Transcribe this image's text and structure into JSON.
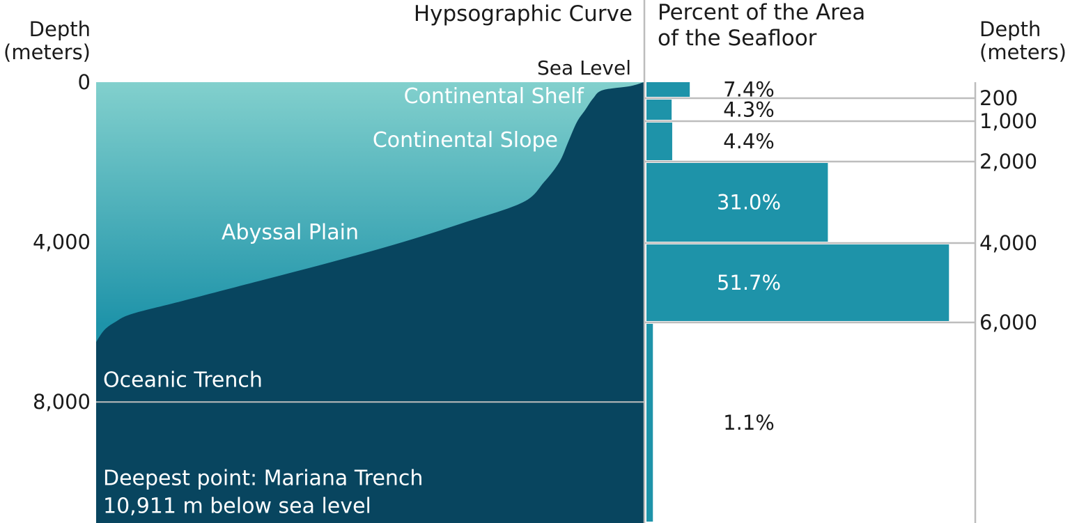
{
  "colors": {
    "ocean_top": "#82d0cd",
    "ocean_mid": "#1e93a9",
    "land": "#08455f",
    "bar": "#1e93a9",
    "grid": "#bdbdbd",
    "text_dark": "#1a1a1a",
    "text_light": "#ffffff"
  },
  "chart_data": [
    {
      "type": "area",
      "title": "Hypsographic Curve",
      "ylabel": "Depth\n(meters)",
      "y_ticks": [
        {
          "value": 0,
          "label": "0"
        },
        {
          "value": 4000,
          "label": "4,000"
        },
        {
          "value": 8000,
          "label": "8,000"
        }
      ],
      "ylim": [
        0,
        11000
      ],
      "y_inverted": true,
      "reference_line": {
        "value": 8000
      },
      "sea_level_label": "Sea Level",
      "curve_depths": [
        0,
        100,
        200,
        400,
        700,
        1000,
        1500,
        2000,
        2500,
        3000,
        3500,
        4000,
        4500,
        5000,
        5500,
        5800,
        6000,
        6200,
        6500
      ],
      "curve_cumulative_percent": [
        100,
        97.5,
        92.5,
        90.8,
        89.3,
        87.8,
        86.2,
        84.6,
        81.8,
        78.0,
        67.5,
        56.0,
        43.0,
        29.0,
        15.0,
        6.5,
        3.5,
        1.5,
        0
      ],
      "annotations": [
        {
          "text": "Continental Shelf",
          "depth": 350,
          "color": "light"
        },
        {
          "text": "Continental Slope",
          "depth": 1450,
          "color": "light"
        },
        {
          "text": "Abyssal Plain",
          "depth": 3750,
          "color": "light"
        },
        {
          "text": "Oceanic Trench",
          "depth": 7450,
          "color": "light"
        },
        {
          "text": "Deepest point: Mariana Trench",
          "depth": 9900,
          "color": "light"
        },
        {
          "text": "10,911 m below sea level",
          "depth": 10600,
          "color": "light"
        }
      ]
    },
    {
      "type": "bar",
      "orientation": "horizontal",
      "title": "Percent of the Area\nof the Seafloor",
      "ylabel": "Depth\n(meters)",
      "xlim": [
        0,
        100
      ],
      "boundary_ticks": [
        {
          "value": 200,
          "label": "200"
        },
        {
          "value": 1000,
          "label": "1,000"
        },
        {
          "value": 2000,
          "label": "2,000"
        },
        {
          "value": 4000,
          "label": "4,000"
        },
        {
          "value": 6000,
          "label": "6,000"
        }
      ],
      "bars": [
        {
          "from": 0,
          "to": 200,
          "value": 7.4,
          "label": "7.4%"
        },
        {
          "from": 200,
          "to": 1000,
          "value": 4.3,
          "label": "4.3%"
        },
        {
          "from": 1000,
          "to": 2000,
          "value": 4.4,
          "label": "4.4%"
        },
        {
          "from": 2000,
          "to": 4000,
          "value": 31.0,
          "label": "31.0%"
        },
        {
          "from": 4000,
          "to": 6000,
          "value": 51.7,
          "label": "51.7%"
        },
        {
          "from": 6000,
          "to": 11000,
          "value": 1.1,
          "label": "1.1%"
        }
      ]
    }
  ]
}
